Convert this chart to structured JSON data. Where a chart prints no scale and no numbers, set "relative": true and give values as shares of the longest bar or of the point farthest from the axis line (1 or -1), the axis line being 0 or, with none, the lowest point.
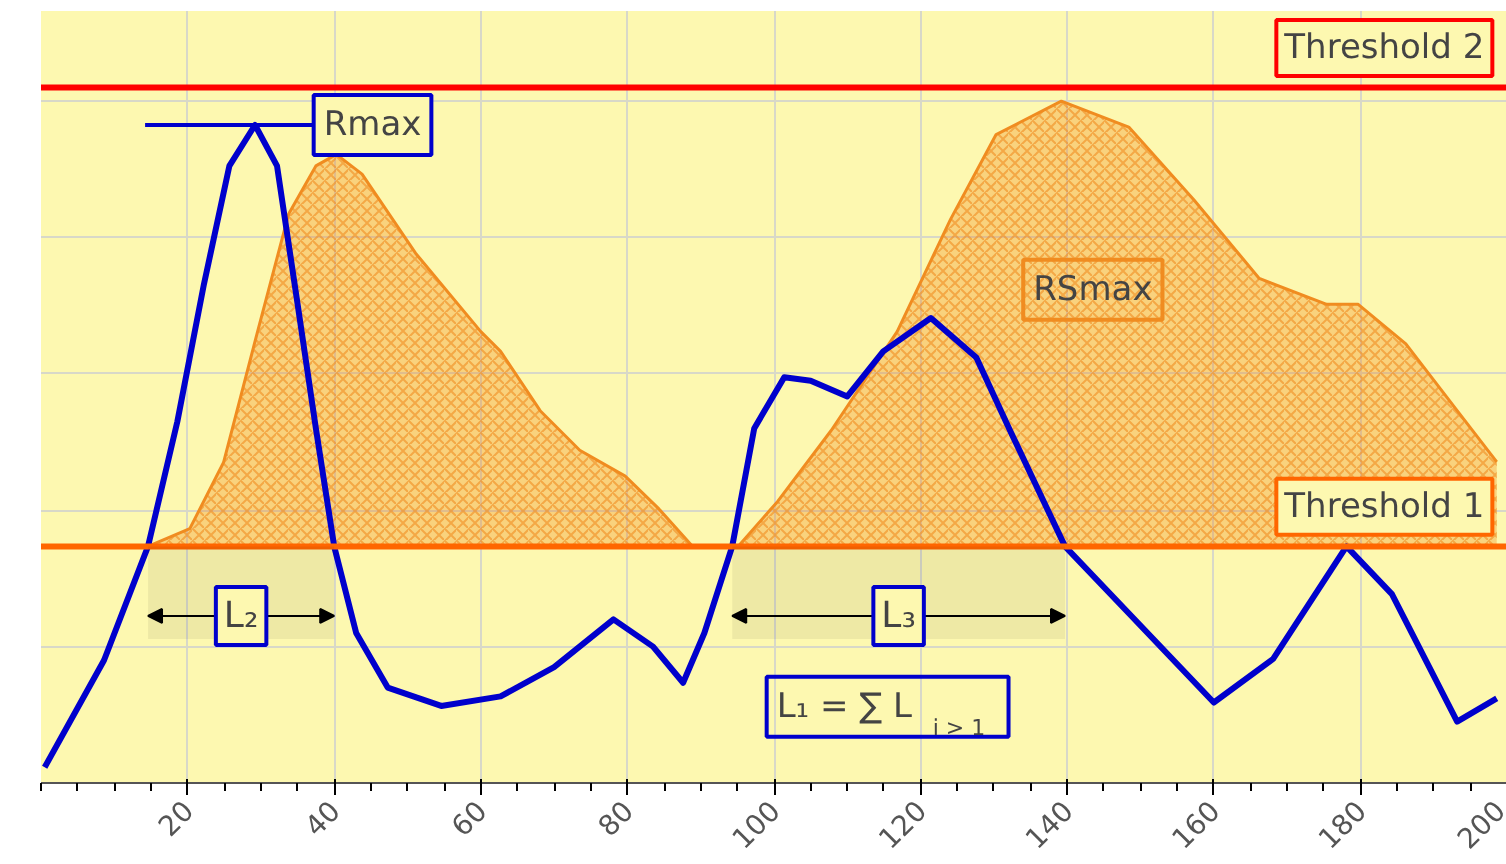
{
  "chart_data": {
    "type": "line",
    "relative": true,
    "x": [
      0.5,
      8.6,
      14.6,
      18.6,
      22.2,
      25.7,
      29.2,
      32.2,
      34.9,
      37.5,
      40,
      43,
      47.3,
      54.6,
      62.7,
      70,
      78.1,
      83.5,
      87.6,
      90.5,
      94.3,
      97.3,
      101.4,
      105,
      110,
      114.9,
      121.4,
      127.6,
      132.2,
      139.7,
      148.4,
      160,
      168.1,
      178.1,
      184.3,
      193.2,
      198.6
    ],
    "series": [
      {
        "color": "#0000cc",
        "values": [
          0.023,
          0.18,
          0.347,
          0.53,
          0.73,
          0.905,
          0.965,
          0.905,
          0.71,
          0.52,
          0.347,
          0.22,
          0.14,
          0.113,
          0.127,
          0.17,
          0.24,
          0.2,
          0.147,
          0.22,
          0.347,
          0.52,
          0.595,
          0.59,
          0.567,
          0.633,
          0.682,
          0.624,
          0.517,
          0.347,
          0.249,
          0.118,
          0.182,
          0.347,
          0.277,
          0.09,
          0.124
        ]
      },
      {
        "type": "area",
        "color": "#f08c20",
        "x": [
          14.6,
          20.3,
          24.9,
          29.5,
          33.8,
          37.5,
          40.3,
          43.8,
          51.1,
          60,
          62.7,
          68.1,
          73.5,
          79.7,
          84.3,
          88.9,
          95.1,
          100.5,
          107.8,
          116.8,
          124.1,
          130.3,
          139.2,
          148.4,
          157.3,
          166.2,
          175.4,
          179.7,
          186.2,
          193.2,
          198.6
        ],
        "values": [
          0.347,
          0.373,
          0.47,
          0.66,
          0.835,
          0.905,
          0.922,
          0.893,
          0.777,
          0.662,
          0.633,
          0.546,
          0.488,
          0.45,
          0.402,
          0.347,
          0.347,
          0.413,
          0.517,
          0.662,
          0.827,
          0.951,
          1.0,
          0.962,
          0.855,
          0.74,
          0.702,
          0.702,
          0.644,
          0.546,
          0.471
        ]
      }
    ],
    "xlim": [
      0,
      200
    ],
    "xticks": [
      20,
      40,
      60,
      80,
      100,
      120,
      140,
      160,
      180,
      200
    ],
    "grid": true,
    "tick_labels": "x",
    "ref_lines": [
      {
        "axis": "y",
        "value": 1.02,
        "label": "Threshold 2",
        "color": "#ff0000"
      },
      {
        "axis": "y",
        "value": 0.347,
        "label": "Threshold 1",
        "color": "#ff6600"
      }
    ],
    "bands": [
      {
        "axis": "x",
        "from": 14.6,
        "to": 40,
        "label": "L₂"
      },
      {
        "axis": "x",
        "from": 94.3,
        "to": 139.7,
        "label": "L₃"
      }
    ],
    "annotations": [
      {
        "text": "Rmax",
        "x": 29.2,
        "y": 0.965
      },
      "RSmax",
      "L₁ = ∑ L$_{i > 1}$"
    ]
  }
}
